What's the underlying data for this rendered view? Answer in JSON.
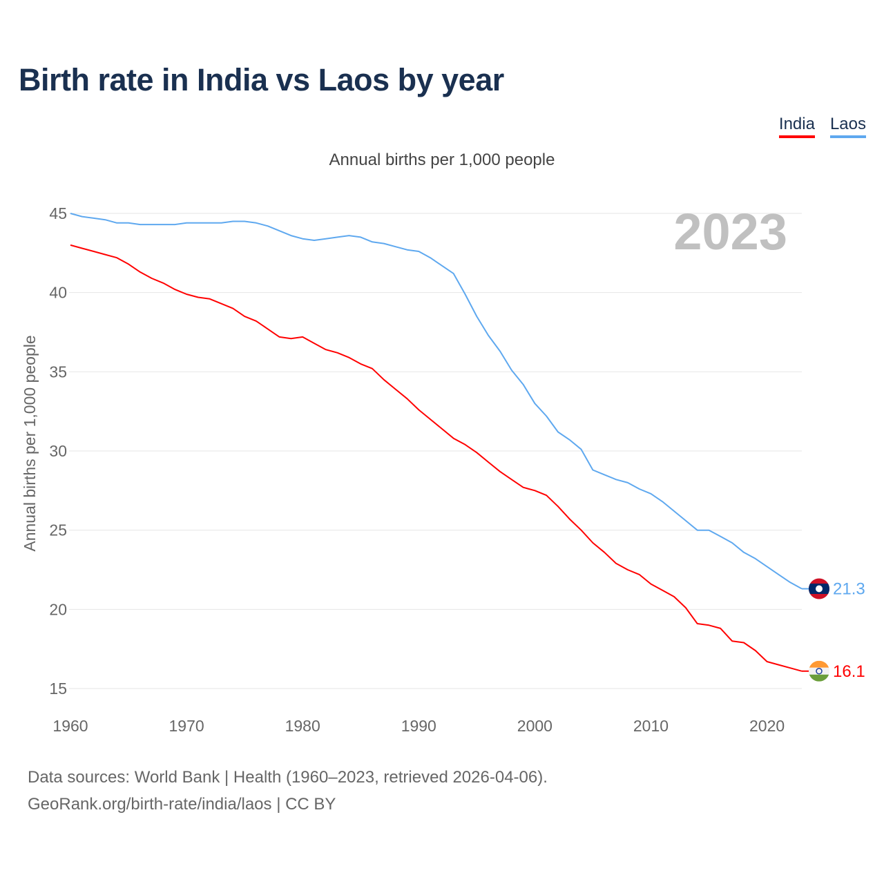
{
  "title": "Birth rate in India vs Laos by year",
  "subtitle": "Annual births per 1,000 people",
  "footer": {
    "line1": "Data sources: World Bank | Health (1960–2023, retrieved 2026-04-06).",
    "line2": "GeoRank.org/birth-rate/india/laos | CC BY"
  },
  "chart_data": {
    "type": "line",
    "title": "Birth rate in India vs Laos by year",
    "ylabel": "Annual births per 1,000 people",
    "xlabel": "",
    "year_label": "2023",
    "xlim": [
      1960,
      2023
    ],
    "ylim": [
      15,
      45
    ],
    "xticks": [
      1960,
      1970,
      1980,
      1990,
      2000,
      2010,
      2020
    ],
    "yticks": [
      15,
      20,
      25,
      30,
      35,
      40,
      45
    ],
    "grid": true,
    "legend_position": "top-right",
    "x_start": 1960,
    "series": [
      {
        "name": "India",
        "color": "#ff0000",
        "end_label": "16.1",
        "flag": "india-flag",
        "values": [
          43.0,
          42.8,
          42.6,
          42.4,
          42.2,
          41.8,
          41.3,
          40.9,
          40.6,
          40.2,
          39.9,
          39.7,
          39.6,
          39.3,
          39.0,
          38.5,
          38.2,
          37.7,
          37.2,
          37.1,
          37.2,
          36.8,
          36.4,
          36.2,
          35.9,
          35.5,
          35.2,
          34.5,
          33.9,
          33.3,
          32.6,
          32.0,
          31.4,
          30.8,
          30.4,
          29.9,
          29.3,
          28.7,
          28.2,
          27.7,
          27.5,
          27.2,
          26.5,
          25.7,
          25.0,
          24.2,
          23.6,
          22.9,
          22.5,
          22.2,
          21.6,
          21.2,
          20.8,
          20.1,
          19.1,
          19.0,
          18.8,
          18.0,
          17.9,
          17.4,
          16.7,
          16.5,
          16.3,
          16.1
        ]
      },
      {
        "name": "Laos",
        "color": "#5ea8ef",
        "end_label": "21.3",
        "flag": "laos-flag",
        "values": [
          45.0,
          44.8,
          44.7,
          44.6,
          44.4,
          44.4,
          44.3,
          44.3,
          44.3,
          44.3,
          44.4,
          44.4,
          44.4,
          44.4,
          44.5,
          44.5,
          44.4,
          44.2,
          43.9,
          43.6,
          43.4,
          43.3,
          43.4,
          43.5,
          43.6,
          43.5,
          43.2,
          43.1,
          42.9,
          42.7,
          42.6,
          42.2,
          41.7,
          41.2,
          39.9,
          38.5,
          37.3,
          36.3,
          35.1,
          34.2,
          33.0,
          32.2,
          31.2,
          30.7,
          30.1,
          28.8,
          28.5,
          28.2,
          28.0,
          27.6,
          27.3,
          26.8,
          26.2,
          25.6,
          25.0,
          25.0,
          24.6,
          24.2,
          23.6,
          23.2,
          22.7,
          22.2,
          21.7,
          21.3
        ]
      }
    ]
  }
}
